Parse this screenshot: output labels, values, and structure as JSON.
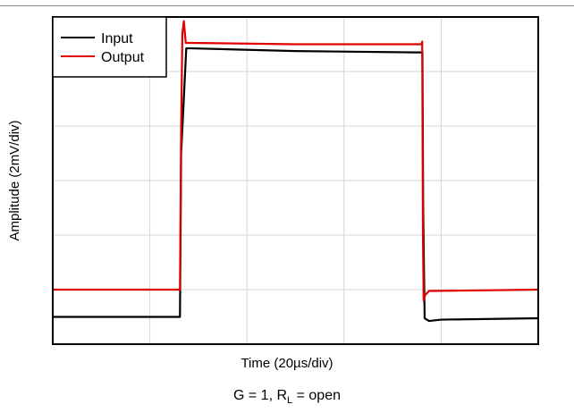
{
  "chart_data": {
    "type": "line",
    "xlabel": "Time (20µs/div)",
    "ylabel": "Amplitude (2mV/div)",
    "x_divisions": 5,
    "y_divisions": 6,
    "xlim": [
      0,
      100
    ],
    "ylim": [
      0,
      12
    ],
    "grid": true,
    "legend_position": "top-left",
    "series": [
      {
        "name": "Input",
        "color": "#000000",
        "x": [
          0,
          26.2,
          26.45,
          27.5,
          28.5,
          50,
          75,
          76.15,
          76.3,
          76.6,
          77.5,
          80,
          100
        ],
        "y": [
          1.0,
          1.0,
          7.0,
          10.85,
          10.85,
          10.75,
          10.7,
          10.7,
          5.0,
          0.95,
          0.85,
          0.9,
          0.95
        ]
      },
      {
        "name": "Output",
        "color": "#e00000",
        "x": [
          0,
          26.2,
          26.45,
          26.7,
          27.0,
          27.4,
          28.5,
          50,
          76.0,
          76.1,
          76.25,
          76.4,
          76.7,
          77.5,
          100
        ],
        "y": [
          2.0,
          2.0,
          8.0,
          11.4,
          11.85,
          11.05,
          11.05,
          11.0,
          11.0,
          11.1,
          4.0,
          1.6,
          1.8,
          1.95,
          2.0
        ]
      }
    ],
    "caption": {
      "prefix": "G = 1, R",
      "subscript": "L",
      "suffix": " = open"
    }
  }
}
